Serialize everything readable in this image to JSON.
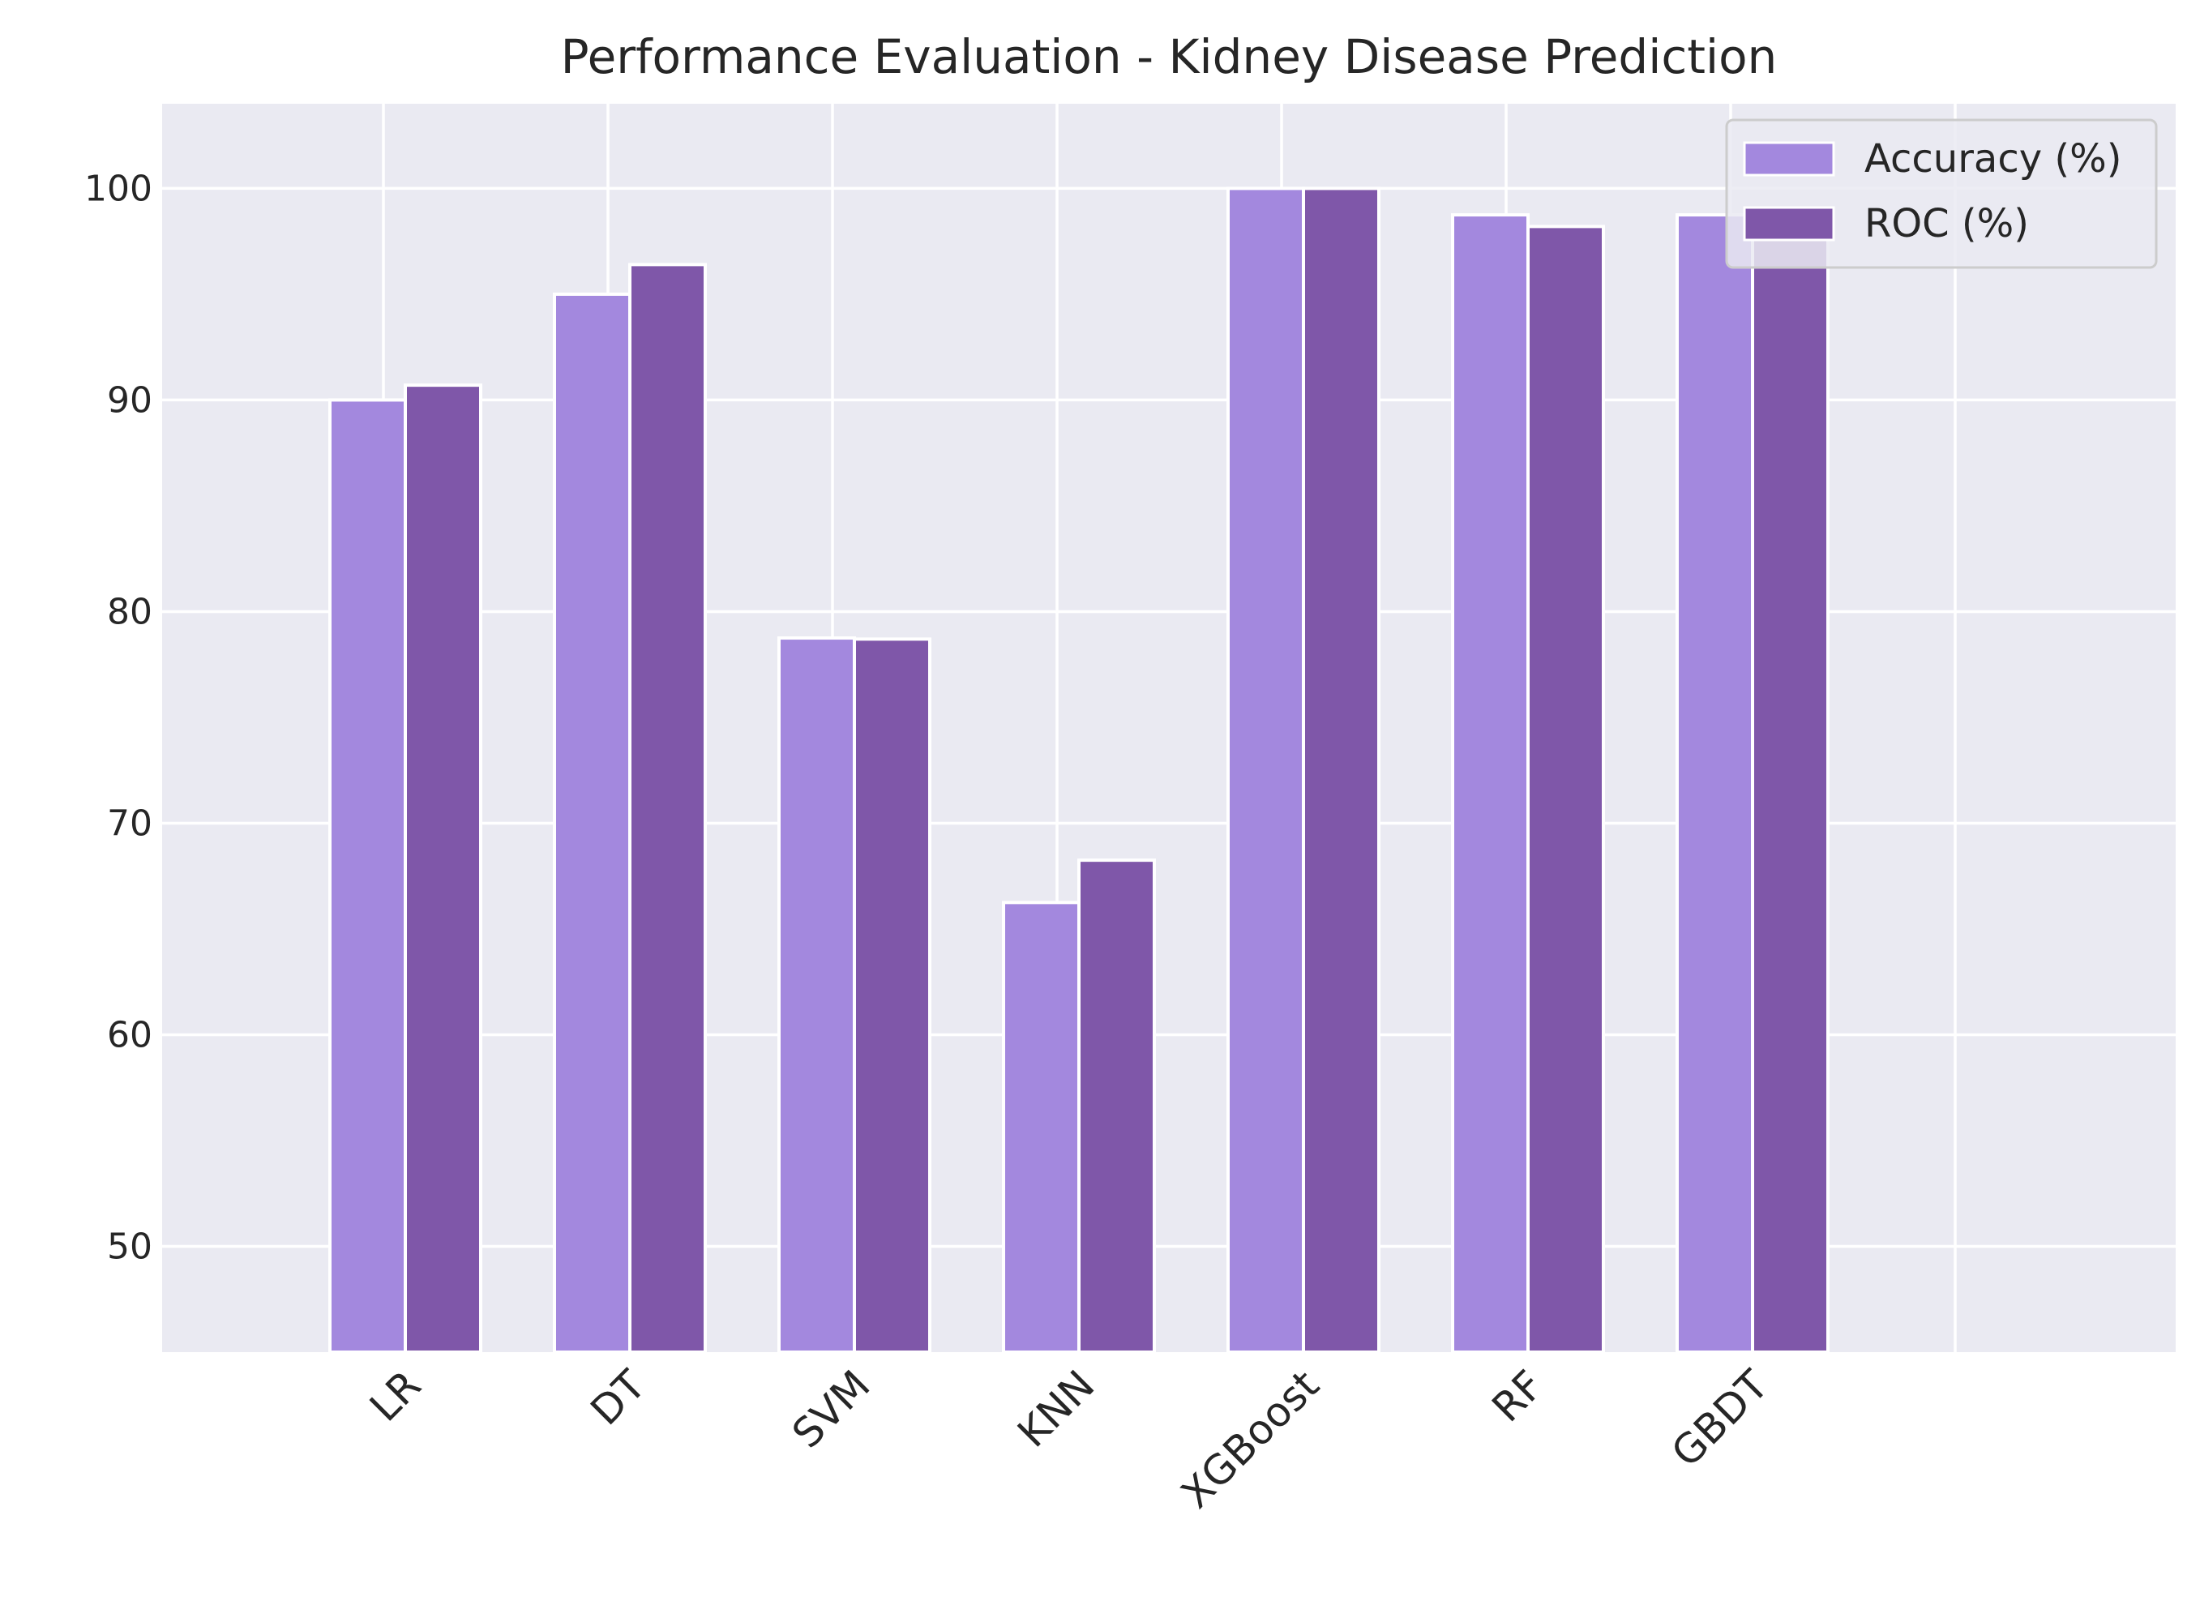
{
  "chart_data": {
    "type": "bar",
    "title": "Performance Evaluation - Kidney Disease Prediction",
    "xlabel": "",
    "ylabel": "",
    "categories": [
      "LR",
      "DT",
      "SVM",
      "KNN",
      "XGBoost",
      "RF",
      "GBDT"
    ],
    "series": [
      {
        "name": "Accuracy (%)",
        "color": "#a388de",
        "values": [
          90.0,
          95.0,
          78.75,
          66.25,
          100.0,
          98.75,
          98.75
        ]
      },
      {
        "name": "ROC (%)",
        "color": "#7f57a9",
        "values": [
          90.7,
          96.4,
          78.7,
          68.25,
          100.0,
          98.2,
          99.0
        ]
      }
    ],
    "ylim": [
      45,
      104
    ],
    "yticks": [
      50,
      60,
      70,
      80,
      90,
      100
    ],
    "grid": true,
    "legend_position": "top-right",
    "background": "#eaeaf2",
    "grid_color": "#ffffff"
  }
}
